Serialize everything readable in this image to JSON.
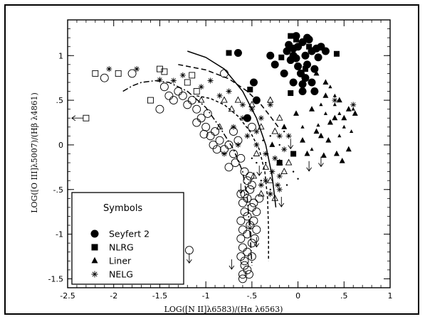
{
  "chart_data": {
    "type": "scatter",
    "title": "",
    "xlabel": "LOG([N II]λ6583)/(Hα λ6563)",
    "ylabel": "LOG([O III]λ5007)/(Hβ λ4861)",
    "xlim": [
      -2.5,
      1.0
    ],
    "ylim": [
      -1.6,
      1.4
    ],
    "x_ticks": [
      -2.5,
      -2,
      -1.5,
      -1,
      -0.5,
      0,
      0.5,
      1
    ],
    "x_tick_labels": [
      "-2.5",
      "-2",
      "-1.5",
      "-1",
      "-.5",
      "0",
      ".5",
      "1"
    ],
    "y_ticks": [
      -1.5,
      -1,
      -0.5,
      0,
      0.5,
      1
    ],
    "y_tick_labels": [
      "-1.5",
      "-1",
      "-.5",
      "0",
      ".5",
      "1"
    ],
    "grid": false,
    "legend": {
      "title": "Symbols",
      "placement": "bottom-left",
      "entries": [
        {
          "label": "Seyfert 2",
          "marker": "circle-filled"
        },
        {
          "label": "NLRG",
          "marker": "square-filled"
        },
        {
          "label": "Liner",
          "marker": "triangle-filled"
        },
        {
          "label": "NELG",
          "marker": "asterisk"
        }
      ]
    },
    "series": [
      {
        "marker": "circle-filled",
        "size": "large",
        "points": [
          [
            0.0,
            1.1
          ],
          [
            0.05,
            1.15
          ],
          [
            -0.05,
            1.0
          ],
          [
            0.1,
            0.9
          ],
          [
            0.15,
            1.05
          ],
          [
            0.2,
            1.08
          ],
          [
            -0.1,
            1.12
          ],
          [
            0.0,
            0.88
          ],
          [
            0.08,
            0.75
          ],
          [
            -0.15,
            0.8
          ],
          [
            0.22,
            0.98
          ],
          [
            0.12,
            1.18
          ],
          [
            -0.02,
            1.22
          ],
          [
            0.18,
            0.85
          ],
          [
            0.05,
            0.68
          ],
          [
            -0.08,
            0.95
          ],
          [
            -0.25,
            0.9
          ],
          [
            0.25,
            1.1
          ],
          [
            0.1,
            1.2
          ],
          [
            -0.12,
            1.05
          ],
          [
            0.03,
            0.8
          ],
          [
            0.3,
            1.05
          ],
          [
            -0.05,
            0.7
          ],
          [
            0.15,
            0.7
          ],
          [
            0.08,
            1.0
          ],
          [
            -0.3,
            1.0
          ],
          [
            -0.55,
            0.3
          ],
          [
            -0.48,
            0.7
          ],
          [
            0.18,
            0.6
          ],
          [
            0.05,
            0.6
          ],
          [
            -0.45,
            0.5
          ],
          [
            -0.65,
            1.03
          ],
          [
            -0.05,
            1.08
          ],
          [
            -0.02,
            0.97
          ]
        ]
      },
      {
        "marker": "square-filled",
        "size": "medium",
        "points": [
          [
            -0.08,
            1.22
          ],
          [
            -0.02,
            1.18
          ],
          [
            0.12,
            1.1
          ],
          [
            -0.18,
            0.98
          ],
          [
            0.08,
            0.85
          ],
          [
            -0.75,
            1.03
          ],
          [
            0.42,
            1.02
          ],
          [
            -0.52,
            0.62
          ],
          [
            -0.08,
            0.58
          ],
          [
            -0.2,
            -0.2
          ],
          [
            -0.05,
            -0.1
          ]
        ]
      },
      {
        "marker": "triangle-filled",
        "size": "medium",
        "points": [
          [
            -0.02,
            0.35
          ],
          [
            0.2,
            0.8
          ],
          [
            0.3,
            0.55
          ],
          [
            0.45,
            0.5
          ],
          [
            0.55,
            0.4
          ],
          [
            0.35,
            0.25
          ],
          [
            -0.15,
            0.2
          ],
          [
            0.05,
            0.05
          ],
          [
            0.25,
            0.1
          ],
          [
            0.4,
            0.3
          ],
          [
            0.55,
            -0.05
          ],
          [
            0.42,
            -0.1
          ],
          [
            0.15,
            0.4
          ],
          [
            0.3,
            0.7
          ],
          [
            -0.28,
            0.0
          ],
          [
            0.1,
            -0.1
          ],
          [
            0.5,
            0.3
          ],
          [
            0.62,
            0.35
          ],
          [
            0.28,
            -0.12
          ],
          [
            0.05,
            0.7
          ],
          [
            0.2,
            0.15
          ],
          [
            0.33,
            0.05
          ],
          [
            0.48,
            -0.18
          ]
        ]
      },
      {
        "marker": "triangle-filled",
        "size": "small",
        "points": [
          [
            0.4,
            0.55
          ],
          [
            0.45,
            0.35
          ],
          [
            0.6,
            0.4
          ],
          [
            0.25,
            0.45
          ],
          [
            0.5,
            0.2
          ],
          [
            0.35,
            0.65
          ],
          [
            0.15,
            -0.05
          ],
          [
            0.05,
            0.2
          ],
          [
            0.45,
            0.1
          ],
          [
            0.58,
            0.15
          ],
          [
            0.3,
            0.35
          ],
          [
            0.22,
            0.22
          ],
          [
            0.4,
            0.45
          ]
        ]
      },
      {
        "marker": "asterisk",
        "size": "medium",
        "points": [
          [
            -2.05,
            0.85
          ],
          [
            -1.75,
            0.85
          ],
          [
            -1.5,
            0.73
          ],
          [
            -1.35,
            0.72
          ],
          [
            -1.25,
            0.78
          ],
          [
            -1.05,
            0.65
          ],
          [
            -0.95,
            0.72
          ],
          [
            -0.85,
            0.55
          ],
          [
            -0.75,
            0.6
          ],
          [
            -0.6,
            0.45
          ],
          [
            -0.5,
            0.4
          ],
          [
            -0.4,
            0.3
          ],
          [
            -0.7,
            0.2
          ],
          [
            -0.55,
            0.1
          ],
          [
            -0.45,
            0.0
          ],
          [
            -0.35,
            -0.1
          ],
          [
            -0.28,
            -0.3
          ],
          [
            -0.2,
            -0.35
          ],
          [
            -0.4,
            -0.45
          ],
          [
            -0.3,
            -0.55
          ],
          [
            -0.25,
            -0.15
          ],
          [
            -0.15,
            -0.05
          ],
          [
            -0.1,
            0.1
          ],
          [
            -0.2,
            -0.5
          ],
          [
            -0.35,
            -0.4
          ],
          [
            -0.45,
            0.15
          ],
          [
            -0.6,
            0.3
          ],
          [
            -0.65,
            0.0
          ],
          [
            -0.2,
            0.1
          ],
          [
            -0.8,
            -0.1
          ],
          [
            -0.3,
            0.45
          ],
          [
            0.4,
            0.5
          ],
          [
            0.6,
            0.45
          ],
          [
            -0.22,
            -0.45
          ]
        ]
      },
      {
        "marker": "circle-open",
        "size": "large",
        "points": [
          [
            -2.1,
            0.75
          ],
          [
            -1.8,
            0.8
          ],
          [
            -1.45,
            0.65
          ],
          [
            -1.35,
            0.5
          ],
          [
            -1.25,
            0.55
          ],
          [
            -1.2,
            0.45
          ],
          [
            -1.1,
            0.4
          ],
          [
            -1.05,
            0.3
          ],
          [
            -1.0,
            0.2
          ],
          [
            -0.95,
            0.1
          ],
          [
            -0.9,
            0.15
          ],
          [
            -0.85,
            0.05
          ],
          [
            -0.8,
            -0.05
          ],
          [
            -0.75,
            0.0
          ],
          [
            -0.7,
            -0.1
          ],
          [
            -0.68,
            -0.2
          ],
          [
            -0.62,
            -0.15
          ],
          [
            -0.58,
            -0.3
          ],
          [
            -0.55,
            -0.4
          ],
          [
            -0.52,
            -0.5
          ],
          [
            -0.55,
            -0.6
          ],
          [
            -0.5,
            -0.7
          ],
          [
            -0.55,
            -0.8
          ],
          [
            -0.52,
            -0.9
          ],
          [
            -0.55,
            -1.0
          ],
          [
            -0.5,
            -1.1
          ],
          [
            -0.55,
            -1.2
          ],
          [
            -0.58,
            -1.3
          ],
          [
            -0.55,
            -1.4
          ],
          [
            -0.6,
            -1.5
          ],
          [
            -0.62,
            -0.55
          ],
          [
            -0.6,
            -0.65
          ],
          [
            -0.58,
            -0.75
          ],
          [
            -0.62,
            -0.85
          ],
          [
            -0.6,
            -0.95
          ],
          [
            -0.62,
            -1.05
          ],
          [
            -0.6,
            -1.15
          ],
          [
            -0.62,
            -1.25
          ],
          [
            -0.58,
            -1.35
          ],
          [
            -0.6,
            -1.45
          ],
          [
            -1.15,
            0.5
          ],
          [
            -1.3,
            0.6
          ],
          [
            -0.8,
            0.8
          ],
          [
            -1.5,
            0.4
          ],
          [
            -1.1,
            0.25
          ],
          [
            -0.88,
            -0.05
          ],
          [
            -0.75,
            -0.25
          ],
          [
            -0.7,
            0.15
          ],
          [
            -1.4,
            0.55
          ],
          [
            -0.5,
            0.2
          ],
          [
            -0.65,
            0.05
          ],
          [
            -0.58,
            -0.55
          ],
          [
            -0.48,
            -0.65
          ],
          [
            -0.52,
            -0.35
          ],
          [
            -0.48,
            -0.85
          ],
          [
            -0.47,
            -1.05
          ],
          [
            -0.5,
            -1.25
          ],
          [
            -0.53,
            -1.45
          ],
          [
            -0.5,
            -0.45
          ],
          [
            -0.45,
            -0.75
          ],
          [
            -0.42,
            -0.6
          ],
          [
            -0.45,
            -0.95
          ],
          [
            -1.18,
            -1.18
          ],
          [
            -0.98,
            0.35
          ],
          [
            -0.92,
            0.0
          ],
          [
            -1.02,
            0.12
          ]
        ]
      },
      {
        "marker": "triangle-open",
        "size": "medium",
        "points": [
          [
            -0.3,
            0.5
          ],
          [
            -0.25,
            0.15
          ],
          [
            -0.2,
            -0.2
          ],
          [
            -0.35,
            -0.25
          ],
          [
            -0.4,
            0.2
          ],
          [
            -0.45,
            -0.1
          ],
          [
            -0.3,
            -0.4
          ],
          [
            -0.5,
            0.45
          ],
          [
            -0.2,
            0.3
          ],
          [
            -0.15,
            -0.3
          ],
          [
            -0.55,
            0.3
          ],
          [
            -0.85,
            0.2
          ],
          [
            -0.65,
            0.5
          ],
          [
            -0.4,
            -0.55
          ],
          [
            -0.25,
            -0.6
          ],
          [
            -0.1,
            -0.2
          ],
          [
            -0.8,
            0.5
          ],
          [
            -0.72,
            0.4
          ],
          [
            -0.48,
            -0.35
          ],
          [
            -1.05,
            0.5
          ]
        ]
      },
      {
        "marker": "square-open",
        "size": "medium",
        "points": [
          [
            -2.2,
            0.8
          ],
          [
            -1.95,
            0.8
          ],
          [
            -1.5,
            0.85
          ],
          [
            -1.2,
            0.7
          ],
          [
            -1.1,
            0.6
          ],
          [
            -2.3,
            0.3
          ],
          [
            -1.6,
            0.5
          ],
          [
            -1.45,
            0.82
          ],
          [
            -1.15,
            0.78
          ]
        ]
      },
      {
        "marker": "dot",
        "size": "small",
        "points": [
          [
            -0.4,
            -0.4
          ],
          [
            -0.3,
            0.1
          ],
          [
            -0.35,
            -0.2
          ],
          [
            -0.2,
            0.0
          ],
          [
            -0.15,
            0.15
          ],
          [
            -0.05,
            -0.3
          ],
          [
            -0.45,
            -0.2
          ],
          [
            -0.38,
            0.05
          ],
          [
            -0.12,
            -0.45
          ],
          [
            0.0,
            -0.38
          ],
          [
            -0.3,
            -0.5
          ],
          [
            -0.5,
            -0.15
          ]
        ]
      }
    ],
    "upper_limit_arrows": [
      [
        -1.18,
        -1.18
      ],
      [
        -0.52,
        -0.8
      ],
      [
        -0.62,
        -0.4
      ],
      [
        -0.08,
        0.1
      ],
      [
        0.12,
        -0.15
      ],
      [
        0.25,
        -0.1
      ],
      [
        -0.18,
        -0.55
      ],
      [
        -0.45,
        -1.0
      ],
      [
        -0.72,
        -1.25
      ],
      [
        -0.42,
        -0.2
      ]
    ],
    "left_limit_arrows": [
      [
        -2.3,
        0.3
      ]
    ],
    "curves": [
      {
        "style": "solid",
        "points": [
          [
            -1.2,
            1.05
          ],
          [
            -1.0,
            0.98
          ],
          [
            -0.8,
            0.85
          ],
          [
            -0.6,
            0.6
          ],
          [
            -0.45,
            0.3
          ],
          [
            -0.35,
            0.0
          ],
          [
            -0.28,
            -0.35
          ],
          [
            -0.24,
            -0.7
          ]
        ]
      },
      {
        "style": "long-dash",
        "points": [
          [
            -1.3,
            0.9
          ],
          [
            -1.0,
            0.84
          ],
          [
            -0.75,
            0.74
          ],
          [
            -0.55,
            0.6
          ],
          [
            -0.4,
            0.45
          ],
          [
            -0.3,
            0.32
          ],
          [
            -0.2,
            0.18
          ]
        ]
      },
      {
        "style": "dash-dot",
        "points": [
          [
            -1.9,
            0.6
          ],
          [
            -1.8,
            0.66
          ],
          [
            -1.7,
            0.7
          ],
          [
            -1.55,
            0.72
          ],
          [
            -1.4,
            0.7
          ],
          [
            -1.2,
            0.6
          ],
          [
            -1.0,
            0.42
          ],
          [
            -0.85,
            0.2
          ],
          [
            -0.7,
            -0.05
          ],
          [
            -0.6,
            -0.3
          ],
          [
            -0.55,
            -0.6
          ],
          [
            -0.52,
            -1.0
          ],
          [
            -0.5,
            -1.35
          ]
        ]
      },
      {
        "style": "short-dash",
        "points": [
          [
            -1.1,
            0.55
          ],
          [
            -0.95,
            0.52
          ],
          [
            -0.8,
            0.45
          ],
          [
            -0.65,
            0.32
          ],
          [
            -0.52,
            0.15
          ],
          [
            -0.42,
            -0.05
          ],
          [
            -0.36,
            -0.3
          ],
          [
            -0.33,
            -0.6
          ],
          [
            -0.32,
            -0.95
          ],
          [
            -0.32,
            -1.3
          ]
        ]
      }
    ]
  }
}
